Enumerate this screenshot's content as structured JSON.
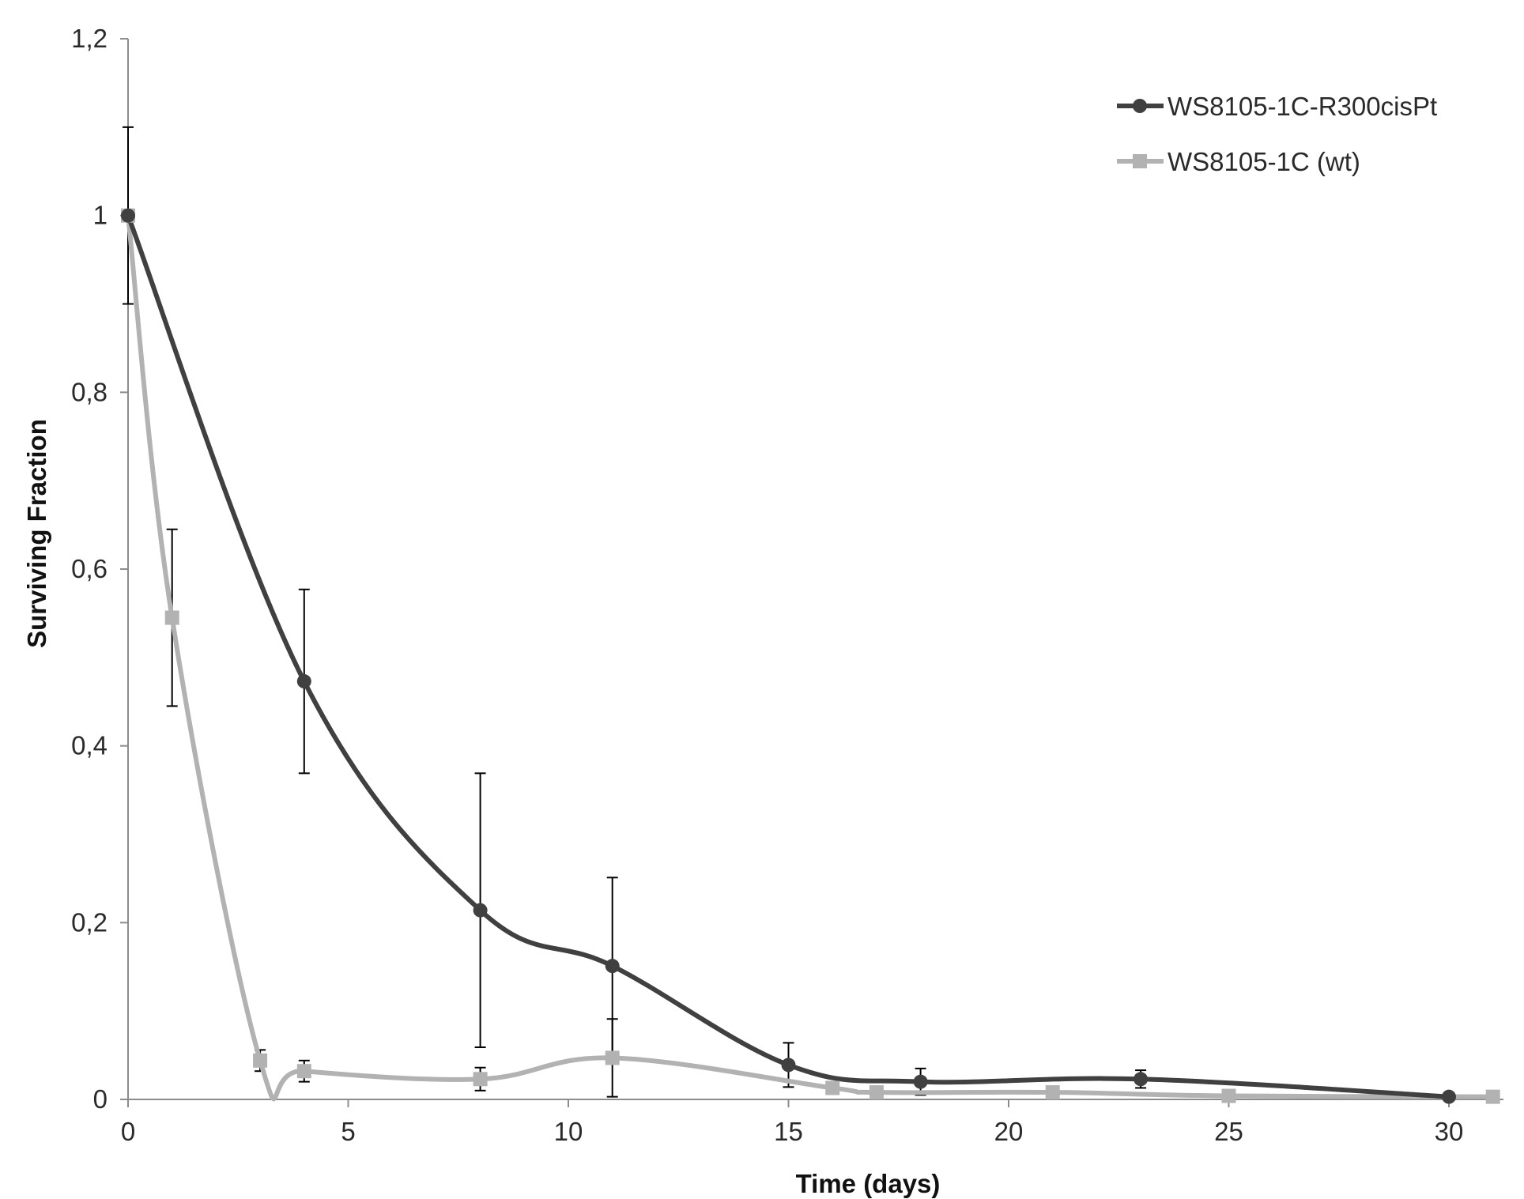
{
  "chart_data": {
    "type": "line",
    "xlabel": "Time (days)",
    "ylabel": "Surviving Fraction",
    "xlim": [
      0,
      31.5
    ],
    "ylim": [
      0,
      1.2
    ],
    "x_ticks": [
      0,
      5,
      10,
      15,
      20,
      25,
      30
    ],
    "x_tick_labels": [
      "0",
      "5",
      "10",
      "15",
      "20",
      "25",
      "30"
    ],
    "y_ticks": [
      0,
      0.2,
      0.4,
      0.6,
      0.8,
      1.0,
      1.2
    ],
    "y_tick_labels": [
      "0",
      "0,2",
      "0,4",
      "0,6",
      "0,8",
      "1",
      "1,2"
    ],
    "grid": false,
    "legend_position": "top-right",
    "smoothed": true,
    "series": [
      {
        "name": "WS8105-1C-R300cisPt",
        "color": "#404040",
        "marker": "circle",
        "x": [
          0,
          4,
          8,
          11,
          15,
          18,
          23,
          30
        ],
        "y": [
          1.0,
          0.473,
          0.214,
          0.151,
          0.039,
          0.02,
          0.023,
          0.003
        ],
        "error": [
          0.1,
          0.104,
          0.155,
          0.1,
          0.025,
          0.015,
          0.01,
          0.004
        ]
      },
      {
        "name": "WS8105-1C (wt)",
        "color": "#b2b2b2",
        "marker": "square",
        "x": [
          0,
          1,
          3,
          4,
          8,
          11,
          16,
          17,
          21,
          25,
          31
        ],
        "y": [
          1.0,
          0.545,
          0.044,
          0.032,
          0.023,
          0.047,
          0.013,
          0.008,
          0.008,
          0.004,
          0.003
        ],
        "error": [
          0,
          0.1,
          0.012,
          0.012,
          0.013,
          0.044,
          0.005,
          0.004,
          0.004,
          0.002,
          0.002
        ]
      }
    ]
  }
}
